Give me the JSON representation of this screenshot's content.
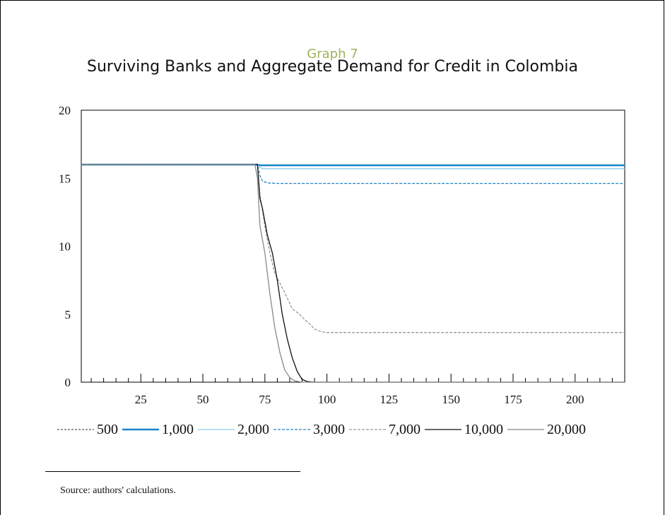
{
  "figure": {
    "label": "Graph 7",
    "title": "Surviving Banks and Aggregate Demand for Credit in Colombia",
    "source": "Source: authors' calculations."
  },
  "chart_data": {
    "type": "line",
    "title": "Surviving Banks and Aggregate Demand for Credit in Colombia",
    "xlabel": "",
    "ylabel": "",
    "xlim": [
      1,
      220
    ],
    "ylim": [
      0,
      20
    ],
    "x_ticks": [
      25,
      50,
      75,
      100,
      125,
      150,
      175,
      200
    ],
    "y_ticks": [
      0,
      5,
      10,
      15,
      20
    ],
    "grid": false,
    "legend_position": "bottom",
    "series": [
      {
        "name": "500",
        "color": "#333333",
        "dash": "3,2",
        "width": 1,
        "points": [
          [
            1,
            16
          ],
          [
            72,
            16
          ],
          [
            73,
            15.95
          ],
          [
            220,
            15.95
          ]
        ]
      },
      {
        "name": "1,000",
        "color": "#1a86c8",
        "dash": "",
        "width": 2.5,
        "points": [
          [
            1,
            16
          ],
          [
            72,
            16
          ],
          [
            73,
            15.95
          ],
          [
            220,
            15.95
          ]
        ]
      },
      {
        "name": "2,000",
        "color": "#8ccbe8",
        "dash": "",
        "width": 1.3,
        "points": [
          [
            1,
            16
          ],
          [
            72,
            16
          ],
          [
            73,
            15.8
          ],
          [
            74,
            15.7
          ],
          [
            220,
            15.7
          ]
        ]
      },
      {
        "name": "3,000",
        "color": "#1a86c8",
        "dash": "4,2",
        "width": 1.3,
        "points": [
          [
            1,
            16
          ],
          [
            72,
            16
          ],
          [
            73,
            15.2
          ],
          [
            74,
            14.8
          ],
          [
            76,
            14.65
          ],
          [
            80,
            14.62
          ],
          [
            220,
            14.62
          ]
        ]
      },
      {
        "name": "7,000",
        "color": "#999999",
        "dash": "4,2",
        "width": 1.3,
        "points": [
          [
            1,
            16
          ],
          [
            72,
            16
          ],
          [
            73,
            13.8
          ],
          [
            75,
            11.5
          ],
          [
            77,
            9.5
          ],
          [
            79,
            8
          ],
          [
            81,
            7.3
          ],
          [
            84,
            6.2
          ],
          [
            86,
            5.4
          ],
          [
            89,
            5
          ],
          [
            91,
            4.6
          ],
          [
            93,
            4.3
          ],
          [
            95,
            3.9
          ],
          [
            98,
            3.7
          ],
          [
            100,
            3.65
          ],
          [
            220,
            3.65
          ]
        ]
      },
      {
        "name": "10,000",
        "color": "#111111",
        "dash": "",
        "width": 1.3,
        "points": [
          [
            1,
            16
          ],
          [
            72,
            16
          ],
          [
            73,
            13.5
          ],
          [
            74,
            12.8
          ],
          [
            75,
            11.8
          ],
          [
            76,
            10.8
          ],
          [
            78,
            9.5
          ],
          [
            80,
            7.5
          ],
          [
            82,
            5
          ],
          [
            84,
            3.2
          ],
          [
            86,
            1.8
          ],
          [
            88,
            0.8
          ],
          [
            90,
            0.2
          ],
          [
            92,
            0.05
          ],
          [
            95,
            0
          ],
          [
            220,
            0
          ]
        ]
      },
      {
        "name": "20,000",
        "color": "#888888",
        "dash": "",
        "width": 1.3,
        "points": [
          [
            1,
            16
          ],
          [
            71,
            16
          ],
          [
            72,
            15
          ],
          [
            73,
            11.5
          ],
          [
            74,
            10.5
          ],
          [
            75,
            9.5
          ],
          [
            77,
            6.5
          ],
          [
            79,
            4
          ],
          [
            81,
            2.2
          ],
          [
            83,
            0.9
          ],
          [
            85,
            0.35
          ],
          [
            87,
            0.1
          ],
          [
            90,
            0
          ],
          [
            220,
            0
          ]
        ]
      }
    ]
  }
}
